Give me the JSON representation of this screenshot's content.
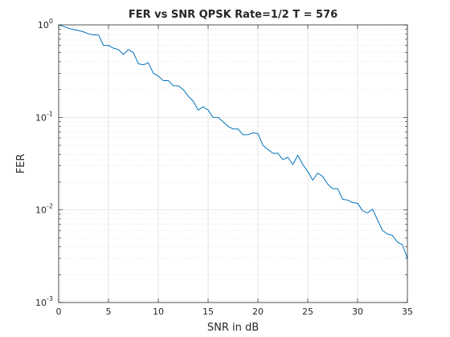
{
  "chart_data": {
    "type": "line",
    "title": "FER vs SNR QPSK Rate=1/2 T = 576",
    "xlabel": "SNR in dB",
    "ylabel": "FER",
    "xlim": [
      0,
      35
    ],
    "ylim": [
      0.001,
      1
    ],
    "yscale": "log",
    "grid": true,
    "minor_grid": true,
    "x_ticks": [
      0,
      5,
      10,
      15,
      20,
      25,
      30,
      35
    ],
    "x_tick_labels": [
      "0",
      "5",
      "10",
      "15",
      "20",
      "25",
      "30",
      "35"
    ],
    "y_ticks": [
      0.001,
      0.01,
      0.1,
      1
    ],
    "y_tick_labels": [
      {
        "base": "10",
        "exp": "-3"
      },
      {
        "base": "10",
        "exp": "-2"
      },
      {
        "base": "10",
        "exp": "-1"
      },
      {
        "base": "10",
        "exp": "0"
      }
    ],
    "series": [
      {
        "color": "#0072BD",
        "x": [
          0,
          0.5,
          1,
          1.5,
          2,
          2.5,
          3,
          3.5,
          4,
          4.5,
          5,
          5.5,
          6,
          6.5,
          7,
          7.5,
          8,
          8.5,
          9,
          9.5,
          10,
          10.5,
          11,
          11.5,
          12,
          12.5,
          13,
          13.5,
          14,
          14.5,
          15,
          15.5,
          16,
          16.5,
          17,
          17.5,
          18,
          18.5,
          19,
          19.5,
          20,
          20.5,
          21,
          21.5,
          22,
          22.5,
          23,
          23.5,
          24,
          24.5,
          25,
          25.5,
          26,
          26.5,
          27,
          27.5,
          28,
          28.5,
          29,
          29.5,
          30,
          30.5,
          31,
          31.5,
          32,
          32.5,
          33,
          33.5,
          34,
          34.5,
          35
        ],
        "y": [
          1.0,
          0.96,
          0.92,
          0.89,
          0.87,
          0.84,
          0.8,
          0.78,
          0.78,
          0.6,
          0.6,
          0.56,
          0.54,
          0.48,
          0.54,
          0.5,
          0.38,
          0.37,
          0.39,
          0.3,
          0.28,
          0.25,
          0.25,
          0.22,
          0.22,
          0.2,
          0.17,
          0.15,
          0.12,
          0.13,
          0.12,
          0.1,
          0.1,
          0.09,
          0.08,
          0.075,
          0.075,
          0.065,
          0.065,
          0.068,
          0.067,
          0.05,
          0.045,
          0.041,
          0.041,
          0.035,
          0.037,
          0.031,
          0.039,
          0.031,
          0.026,
          0.021,
          0.025,
          0.023,
          0.019,
          0.017,
          0.017,
          0.013,
          0.0128,
          0.012,
          0.0118,
          0.0098,
          0.0093,
          0.0102,
          0.0078,
          0.006,
          0.0055,
          0.0053,
          0.0045,
          0.0042,
          0.003
        ]
      }
    ]
  }
}
